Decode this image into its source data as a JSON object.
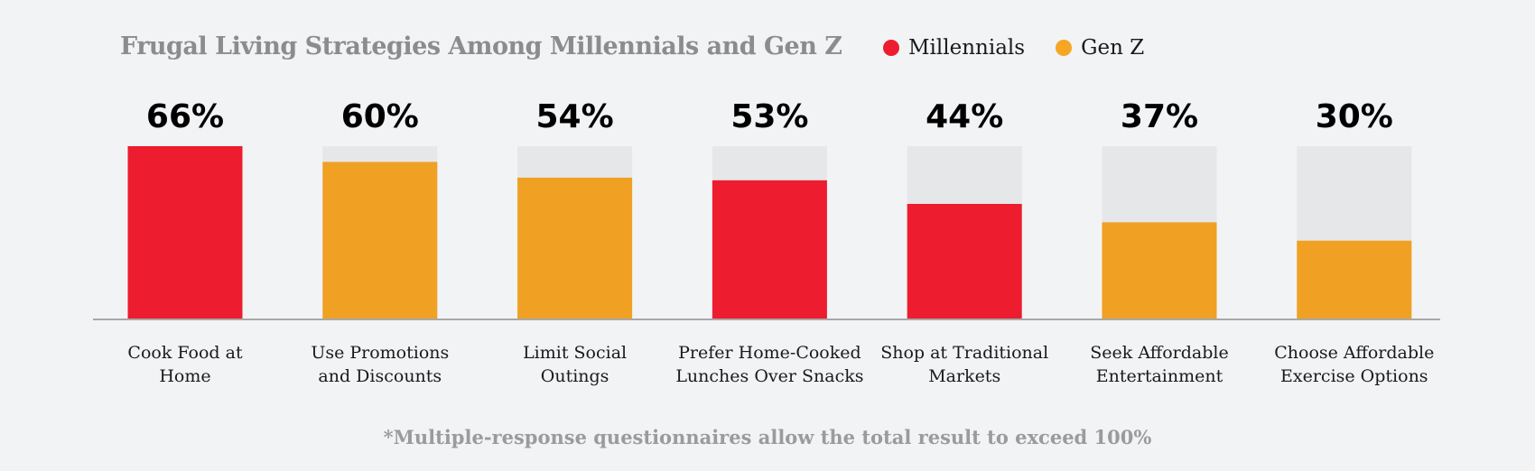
{
  "title": "Frugal Living Strategies Among Millennials and Gen Z",
  "legend": [
    {
      "label": "Millennials",
      "color": "#ed1c2e"
    },
    {
      "label": "Gen Z",
      "color": "#f5a623"
    }
  ],
  "footnote": "*Multiple-response questionnaires allow the total result to exceed 100%",
  "colors": {
    "millennials": "#ed1c2e",
    "genz": "#f0a023",
    "track": "#e6e7e9",
    "axis": "#a8a8a8"
  },
  "chart_data": {
    "type": "bar",
    "title": "Frugal Living Strategies Among Millennials and Gen Z",
    "xlabel": "",
    "ylabel": "",
    "ylim": [
      0,
      66
    ],
    "grid": false,
    "legend_position": "top-right",
    "categories": [
      [
        "Cook Food at",
        "Home"
      ],
      [
        "Use Promotions",
        "and Discounts"
      ],
      [
        "Limit Social",
        "Outings"
      ],
      [
        "Prefer Home-Cooked",
        "Lunches Over Snacks"
      ],
      [
        "Shop at Traditional",
        "Markets"
      ],
      [
        "Seek Affordable",
        "Entertainment"
      ],
      [
        "Choose Affordable",
        "Exercise Options"
      ]
    ],
    "values": [
      66,
      60,
      54,
      53,
      44,
      37,
      30
    ],
    "labels": [
      "66%",
      "60%",
      "54%",
      "53%",
      "44%",
      "37%",
      "30%"
    ],
    "series_of_bar": [
      "Millennials",
      "Gen Z",
      "Gen Z",
      "Millennials",
      "Millennials",
      "Gen Z",
      "Gen Z"
    ]
  }
}
